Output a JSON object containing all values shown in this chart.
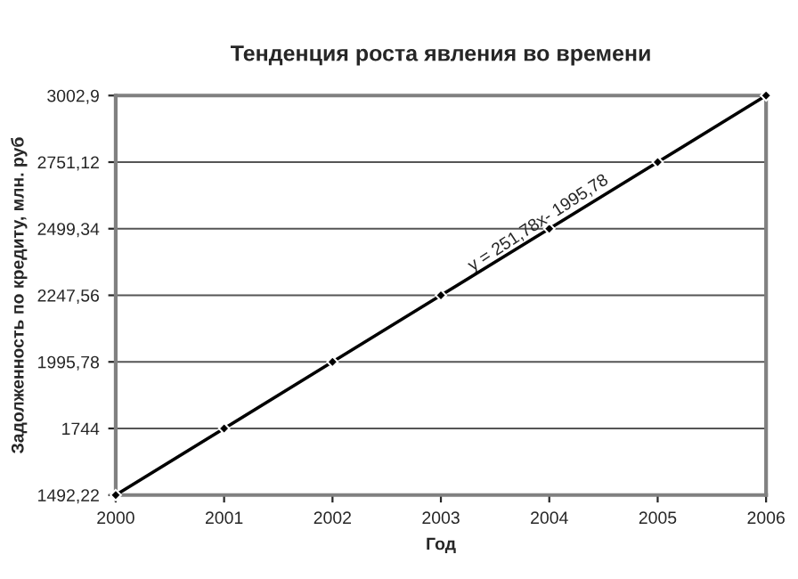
{
  "chart_data": {
    "type": "line",
    "title": "Тенденция роста явления во времени",
    "xlabel": "Год",
    "ylabel": "Задолженность по кредиту, млн. руб",
    "x": [
      2000,
      2001,
      2002,
      2003,
      2004,
      2005,
      2006
    ],
    "series": [
      {
        "color": "#000000",
        "values": [
          1492.22,
          1744,
          1995.78,
          2247.56,
          2499.34,
          2751.12,
          3002.9
        ]
      }
    ],
    "xlim": [
      2000,
      2006
    ],
    "xticks": [
      2000,
      2001,
      2002,
      2003,
      2004,
      2005,
      2006
    ],
    "ylim": [
      1492.22,
      3002.9
    ],
    "yticks": [
      {
        "value": 1492.22,
        "label": "1492,22"
      },
      {
        "value": 1744,
        "label": "1744"
      },
      {
        "value": 1995.78,
        "label": "1995,78"
      },
      {
        "value": 2247.56,
        "label": "2247,56"
      },
      {
        "value": 2499.34,
        "label": "2499,34"
      },
      {
        "value": 2751.12,
        "label": "2751,12"
      },
      {
        "value": 3002.9,
        "label": "3002,9"
      }
    ],
    "grid": "y",
    "marker": "diamond",
    "line_style": "solid",
    "annotations": [
      "y = 251,78x- 1995,78"
    ]
  }
}
